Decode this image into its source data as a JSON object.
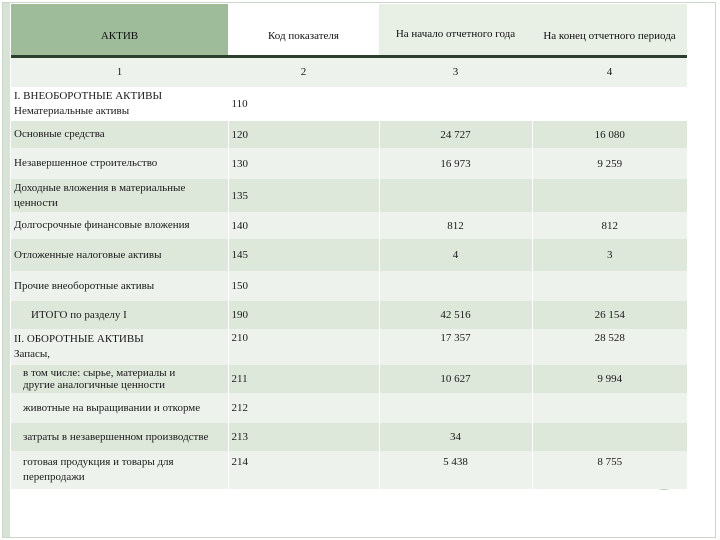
{
  "table": {
    "headers": [
      "АКТИВ",
      "Код показателя",
      "На начало отчетного года",
      "На конец отчетного периода"
    ],
    "numbers": [
      "1",
      "2",
      "3",
      "4"
    ],
    "rows": [
      {
        "label": "I. ВНЕОБОРОТНЫЕ АКТИВЫ",
        "label2": "Нематериальные активы",
        "code": "110",
        "start": "",
        "end": ""
      },
      {
        "label": "Основные средства",
        "label2": "",
        "code": "120",
        "start": "24 727",
        "end": "16 080"
      },
      {
        "label": "Незавершенное строительство",
        "label2": "",
        "code": "130",
        "start": "16 973",
        "end": "9 259"
      },
      {
        "label": "Доходные вложения в материальные",
        "label2": "ценности",
        "code": "135",
        "start": "",
        "end": ""
      },
      {
        "label": "Долгосрочные финансовые вложения",
        "label2": "",
        "code": "140",
        "start": "812",
        "end": "812"
      },
      {
        "label": "Отложенные налоговые активы",
        "label2": "",
        "code": "145",
        "start": "4",
        "end": "3"
      },
      {
        "label": "Прочие внеоборотные активы",
        "label2": "",
        "code": "150",
        "start": "",
        "end": ""
      },
      {
        "label": "ИТОГО по разделу I",
        "label2": "",
        "code": "190",
        "start": "42 516",
        "end": "26 154"
      },
      {
        "label": "II. ОБОРОТНЫЕ АКТИВЫ",
        "label2": "Запасы,",
        "code": "210",
        "start": "17 357",
        "end": "28 528"
      },
      {
        "label": "в том числе: сырье, материалы и",
        "label2": "другие аналогичные ценности",
        "code": "211",
        "start": "10 627",
        "end": "9 994"
      },
      {
        "label": "животные на выращивании и откорме",
        "label2": "",
        "code": "212",
        "start": "",
        "end": ""
      },
      {
        "label": "затраты в незавершенном производстве",
        "label2": "",
        "code": "213",
        "start": "34",
        "end": ""
      },
      {
        "label": "готовая продукция и товары для",
        "label2": "перепродажи",
        "code": "214",
        "start": "5 438",
        "end": "8 755"
      }
    ]
  }
}
